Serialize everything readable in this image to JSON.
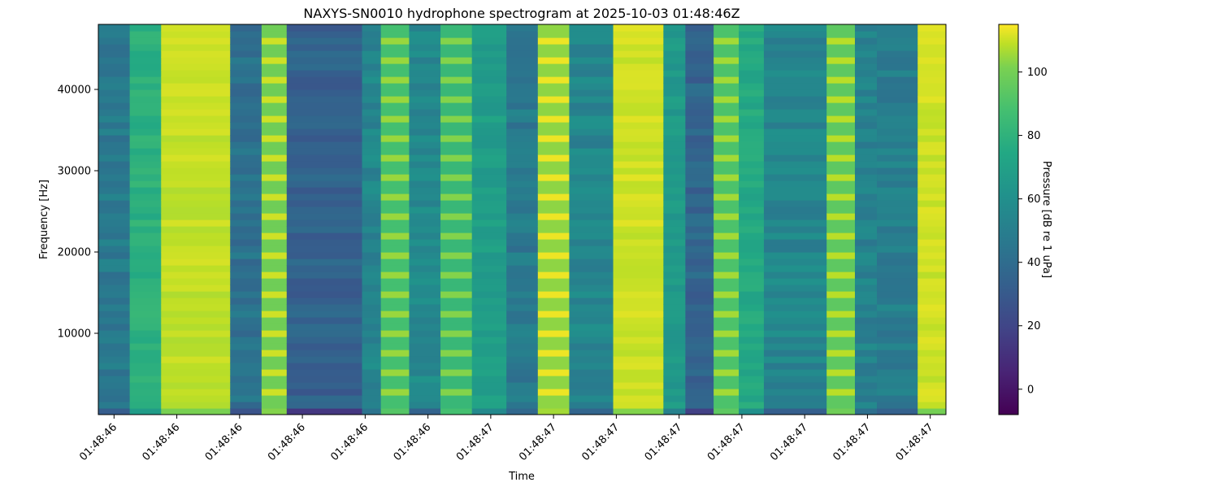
{
  "chart_data": {
    "type": "heatmap",
    "title": "NAXYS-SN0010 hydrophone spectrogram at 2025-10-03 01:48:46Z",
    "xlabel": "Time",
    "ylabel": "Frequency [Hz]",
    "ylim": [
      0,
      48000
    ],
    "y_ticks": [
      10000,
      20000,
      30000,
      40000
    ],
    "x_ticks": [
      {
        "t": 0.12,
        "label": "01:48:46"
      },
      {
        "t": 0.32,
        "label": "01:48:46"
      },
      {
        "t": 0.52,
        "label": "01:48:46"
      },
      {
        "t": 0.72,
        "label": "01:48:46"
      },
      {
        "t": 0.92,
        "label": "01:48:46"
      },
      {
        "t": 1.12,
        "label": "01:48:46"
      },
      {
        "t": 1.32,
        "label": "01:48:47"
      },
      {
        "t": 1.52,
        "label": "01:48:47"
      },
      {
        "t": 1.72,
        "label": "01:48:47"
      },
      {
        "t": 1.92,
        "label": "01:48:47"
      },
      {
        "t": 2.12,
        "label": "01:48:47"
      },
      {
        "t": 2.32,
        "label": "01:48:47"
      },
      {
        "t": 2.52,
        "label": "01:48:47"
      },
      {
        "t": 2.72,
        "label": "01:48:47"
      }
    ],
    "xlim": [
      0.07,
      2.77
    ],
    "colorbar": {
      "label": "Pressure [dB re 1 uPa]",
      "range": [
        -8,
        115
      ],
      "ticks": [
        0,
        20,
        40,
        60,
        80,
        100
      ],
      "colormap": "viridis"
    },
    "time_segments": [
      {
        "t0": 0.07,
        "t1": 0.17,
        "level": 42,
        "ripple": "dense"
      },
      {
        "t0": 0.17,
        "t1": 0.27,
        "level": 70,
        "ripple": "soft"
      },
      {
        "t0": 0.27,
        "t1": 0.49,
        "level": 104,
        "ripple": "soft"
      },
      {
        "t0": 0.49,
        "t1": 0.59,
        "level": 38,
        "ripple": "dense"
      },
      {
        "t0": 0.59,
        "t1": 0.67,
        "level": 98,
        "ripple": "beads"
      },
      {
        "t0": 0.67,
        "t1": 0.91,
        "level": 30,
        "ripple": "dense"
      },
      {
        "t0": 0.91,
        "t1": 0.97,
        "level": 48,
        "ripple": "dense"
      },
      {
        "t0": 0.97,
        "t1": 1.06,
        "level": 88,
        "ripple": "beads"
      },
      {
        "t0": 1.06,
        "t1": 1.16,
        "level": 50,
        "ripple": "dense"
      },
      {
        "t0": 1.16,
        "t1": 1.26,
        "level": 84,
        "ripple": "beads"
      },
      {
        "t0": 1.26,
        "t1": 1.37,
        "level": 60,
        "ripple": "soft"
      },
      {
        "t0": 1.37,
        "t1": 1.47,
        "level": 42,
        "ripple": "dense"
      },
      {
        "t0": 1.47,
        "t1": 1.57,
        "level": 104,
        "ripple": "beads"
      },
      {
        "t0": 1.57,
        "t1": 1.71,
        "level": 48,
        "ripple": "dense"
      },
      {
        "t0": 1.71,
        "t1": 1.87,
        "level": 106,
        "ripple": "soft"
      },
      {
        "t0": 1.87,
        "t1": 1.94,
        "level": 58,
        "ripple": "soft"
      },
      {
        "t0": 1.94,
        "t1": 2.03,
        "level": 32,
        "ripple": "dense"
      },
      {
        "t0": 2.03,
        "t1": 2.11,
        "level": 90,
        "ripple": "beads"
      },
      {
        "t0": 2.11,
        "t1": 2.19,
        "level": 66,
        "ripple": "soft"
      },
      {
        "t0": 2.19,
        "t1": 2.39,
        "level": 48,
        "ripple": "dense"
      },
      {
        "t0": 2.39,
        "t1": 2.48,
        "level": 94,
        "ripple": "beads"
      },
      {
        "t0": 2.48,
        "t1": 2.55,
        "level": 46,
        "ripple": "dense"
      },
      {
        "t0": 2.55,
        "t1": 2.68,
        "level": 44,
        "ripple": "dense"
      },
      {
        "t0": 2.68,
        "t1": 2.77,
        "level": 106,
        "ripple": "soft"
      }
    ]
  }
}
